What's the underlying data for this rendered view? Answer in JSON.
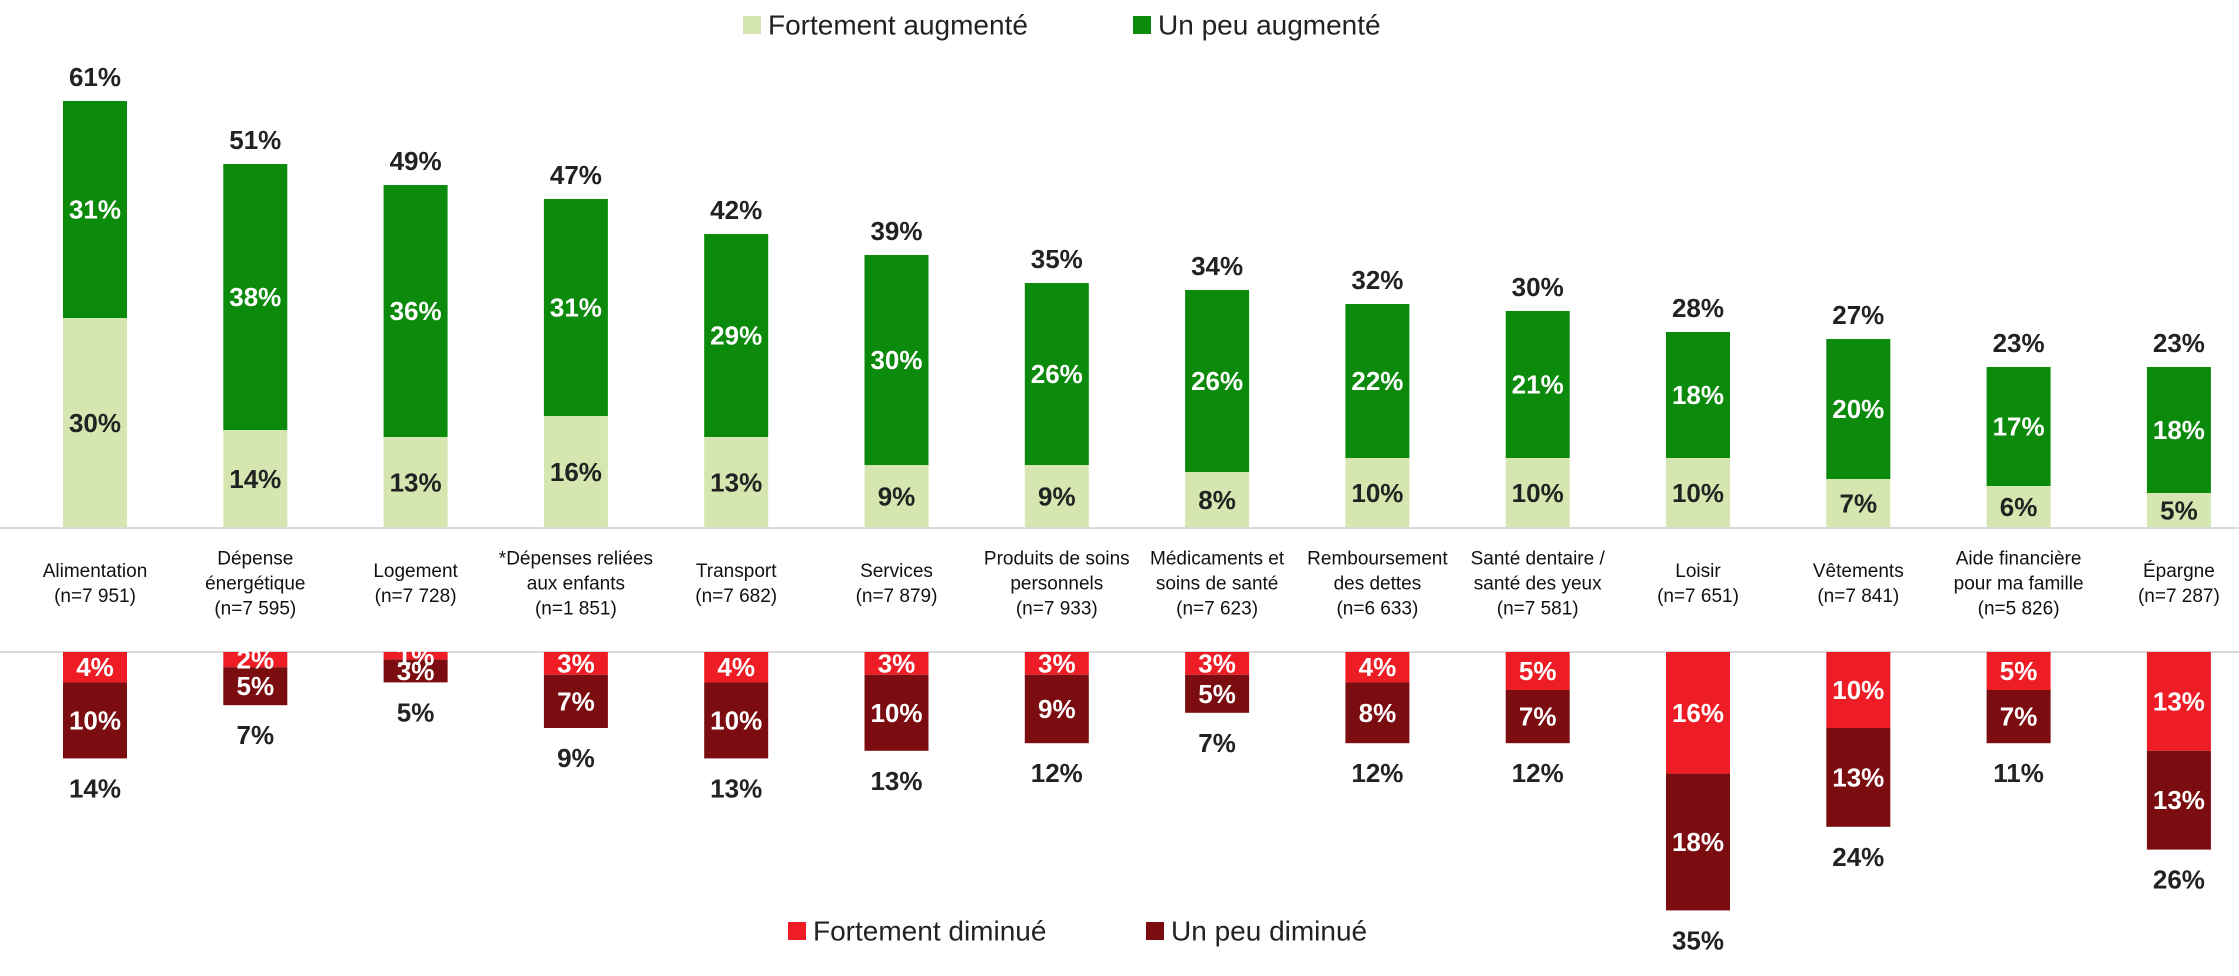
{
  "chart_data": {
    "type": "bar",
    "stacked": true,
    "diverging": true,
    "legend_top": [
      "Fortement augmenté",
      "Un peu augmenté"
    ],
    "legend_bottom": [
      "Fortement diminué",
      "Un peu diminué"
    ],
    "colors": {
      "strong_up": "#d5e6b0",
      "some_up": "#0b8a0b",
      "strong_down": "#ee1c25",
      "some_down": "#7b0c0f"
    },
    "categories": [
      {
        "lines": [
          "Alimentation",
          "(n=7 951)"
        ]
      },
      {
        "lines": [
          "Dépense",
          "énergétique",
          "(n=7 595)"
        ]
      },
      {
        "lines": [
          "Logement",
          "(n=7 728)"
        ]
      },
      {
        "lines": [
          "*Dépenses reliées",
          "aux enfants",
          "(n=1 851)"
        ]
      },
      {
        "lines": [
          "Transport",
          "(n=7 682)"
        ]
      },
      {
        "lines": [
          "Services",
          "(n=7 879)"
        ]
      },
      {
        "lines": [
          "Produits de soins",
          "personnels",
          "(n=7 933)"
        ]
      },
      {
        "lines": [
          "Médicaments et",
          "soins de santé",
          "(n=7 623)"
        ]
      },
      {
        "lines": [
          "Remboursement",
          "des dettes",
          "(n=6 633)"
        ]
      },
      {
        "lines": [
          "Santé dentaire /",
          "santé des yeux",
          "(n=7 581)"
        ]
      },
      {
        "lines": [
          "Loisir",
          "(n=7 651)"
        ]
      },
      {
        "lines": [
          "Vêtements",
          "(n=7 841)"
        ]
      },
      {
        "lines": [
          "Aide financière",
          "pour ma famille",
          "(n=5 826)"
        ]
      },
      {
        "lines": [
          "Épargne",
          "(n=7 287)"
        ]
      }
    ],
    "series": [
      {
        "name": "Fortement augmenté",
        "values": [
          30,
          14,
          13,
          16,
          13,
          9,
          9,
          8,
          10,
          10,
          10,
          7,
          6,
          5
        ]
      },
      {
        "name": "Un peu augmenté",
        "values": [
          31,
          38,
          36,
          31,
          29,
          30,
          26,
          26,
          22,
          21,
          18,
          20,
          17,
          18
        ]
      },
      {
        "name": "Fortement diminué",
        "values": [
          4,
          2,
          1,
          3,
          4,
          3,
          3,
          3,
          4,
          5,
          16,
          10,
          5,
          13
        ]
      },
      {
        "name": "Un peu diminué",
        "values": [
          10,
          5,
          3,
          7,
          10,
          10,
          9,
          5,
          8,
          7,
          18,
          13,
          7,
          13
        ]
      }
    ],
    "totals_up": [
      61,
      51,
      49,
      47,
      42,
      39,
      35,
      34,
      32,
      30,
      28,
      27,
      23,
      23
    ],
    "totals_down": [
      14,
      7,
      5,
      9,
      13,
      13,
      12,
      7,
      12,
      12,
      35,
      24,
      11,
      26
    ],
    "unit": "%"
  }
}
